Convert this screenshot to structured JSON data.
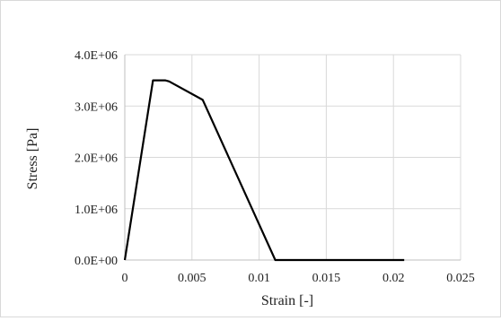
{
  "chart_data": {
    "type": "line",
    "title": "",
    "xlabel": "Strain [-]",
    "ylabel": "Stress [Pa]",
    "xlim": [
      0,
      0.025
    ],
    "ylim": [
      0,
      4000000
    ],
    "x_ticks": [
      0,
      0.005,
      0.01,
      0.015,
      0.02,
      0.025
    ],
    "x_tick_labels": [
      "0",
      "0.005",
      "0.01",
      "0.015",
      "0.02",
      "0.025"
    ],
    "y_ticks": [
      0,
      1000000,
      2000000,
      3000000,
      4000000
    ],
    "y_tick_labels": [
      "0.0E+00",
      "1.0E+06",
      "2.0E+06",
      "3.0E+06",
      "4.0E+06"
    ],
    "grid": true,
    "legend": "none",
    "series": [
      {
        "color": "#000000",
        "x": [
          0,
          0.0021,
          0.003,
          0.0033,
          0.0058,
          0.0112,
          0.0208
        ],
        "y": [
          0,
          3500000,
          3500000,
          3480000,
          3120000,
          0,
          0
        ]
      }
    ]
  }
}
